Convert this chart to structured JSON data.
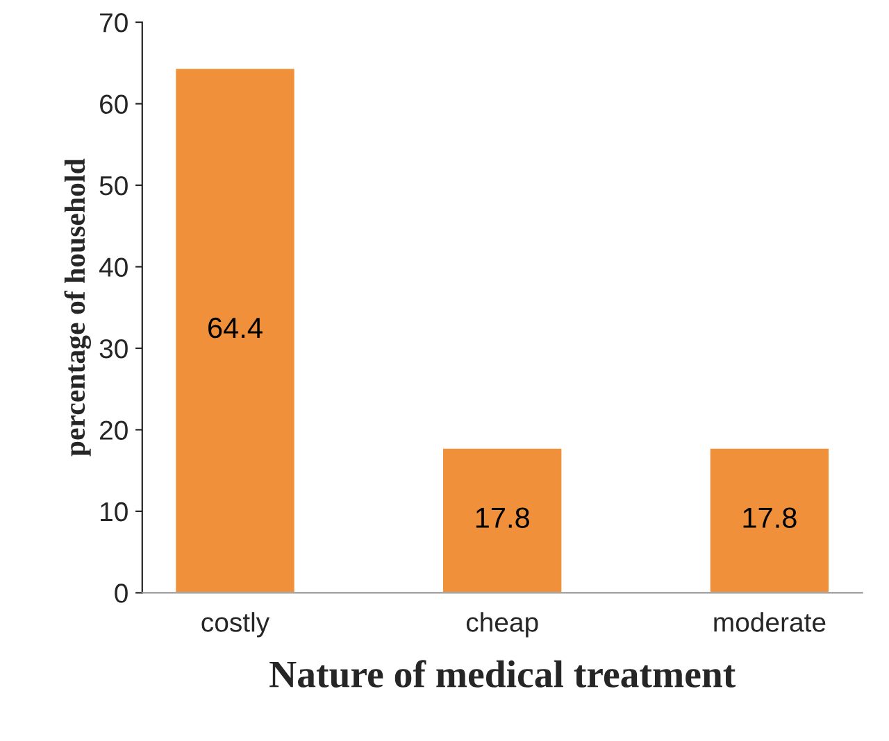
{
  "chart_data": {
    "type": "bar",
    "xlabel": "Nature of medical treatment",
    "ylabel": "percentage of household",
    "categories": [
      "costly",
      "cheap",
      "moderate"
    ],
    "values": [
      64.4,
      17.8,
      17.8
    ],
    "color": "#f0903a",
    "ylim": [
      0,
      70
    ],
    "yticks": [
      0,
      10,
      20,
      30,
      40,
      50,
      60,
      70
    ],
    "grid": false,
    "data_labels": true
  }
}
